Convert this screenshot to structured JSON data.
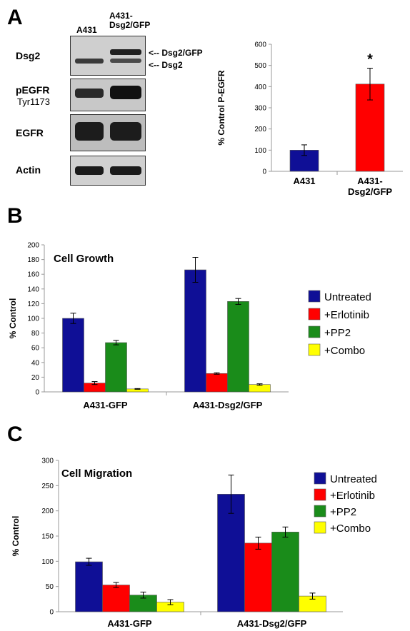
{
  "panels": {
    "a": "A",
    "b": "B",
    "c": "C"
  },
  "blot": {
    "lanes": [
      "A431",
      "A431-\nDsg2/GFP"
    ],
    "rows": [
      {
        "label": "Dsg2",
        "sub": ""
      },
      {
        "label": "pEGFR",
        "sub": "Tyr1173"
      },
      {
        "label": "EGFR",
        "sub": ""
      },
      {
        "label": "Actin",
        "sub": ""
      }
    ],
    "arrows": [
      "<-- Dsg2/GFP",
      "<-- Dsg2"
    ]
  },
  "chart_data": [
    {
      "type": "bar",
      "categories": [
        "A431",
        "A431-Dsg2/GFP"
      ],
      "values": [
        100,
        412
      ],
      "errors": [
        25,
        75
      ],
      "bar_colors": [
        "#0f0f96",
        "#ff0000"
      ],
      "ylabel": "% Control P-EGFR",
      "ylim": [
        0,
        600
      ],
      "yticks": [
        0,
        100,
        200,
        300,
        400,
        500,
        600
      ],
      "annotations": [
        {
          "category": "A431-Dsg2/GFP",
          "text": "*"
        }
      ],
      "grid": false
    },
    {
      "type": "bar",
      "title": "Cell Growth",
      "categories": [
        "A431-GFP",
        "A431-Dsg2/GFP"
      ],
      "series": [
        {
          "name": "Untreated",
          "color": "#0f0f96",
          "values": [
            100,
            166
          ],
          "errors": [
            7,
            17
          ]
        },
        {
          "name": "+Erlotinib",
          "color": "#ff0000",
          "values": [
            12,
            25
          ],
          "errors": [
            2,
            1
          ]
        },
        {
          "name": "+PP2",
          "color": "#1a8c1a",
          "values": [
            67,
            123
          ],
          "errors": [
            3,
            4
          ]
        },
        {
          "name": "+Combo",
          "color": "#ffff00",
          "values": [
            4,
            10
          ],
          "errors": [
            0.5,
            1
          ]
        }
      ],
      "ylabel": "% Control",
      "ylim": [
        0,
        200
      ],
      "yticks": [
        0,
        20,
        40,
        60,
        80,
        100,
        120,
        140,
        160,
        180,
        200
      ],
      "legend": "right",
      "grid": false
    },
    {
      "type": "bar",
      "title": "Cell Migration",
      "categories": [
        "A431-GFP",
        "A431-Dsg2/GFP"
      ],
      "series": [
        {
          "name": "Untreated",
          "color": "#0f0f96",
          "values": [
            99,
            233
          ],
          "errors": [
            7,
            38
          ]
        },
        {
          "name": "+Erlotinib",
          "color": "#ff0000",
          "values": [
            53,
            136
          ],
          "errors": [
            5,
            12
          ]
        },
        {
          "name": "+PP2",
          "color": "#1a8c1a",
          "values": [
            33,
            158
          ],
          "errors": [
            6,
            10
          ]
        },
        {
          "name": "+Combo",
          "color": "#ffff00",
          "values": [
            19,
            31
          ],
          "errors": [
            5,
            6
          ]
        }
      ],
      "ylabel": "% Control",
      "ylim": [
        0,
        300
      ],
      "yticks": [
        0,
        50,
        100,
        150,
        200,
        250,
        300
      ],
      "legend": "right",
      "grid": false
    }
  ]
}
